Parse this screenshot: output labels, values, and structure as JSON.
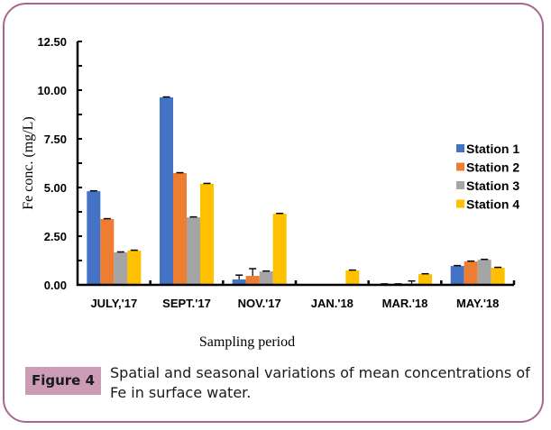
{
  "figure": {
    "label": "Figure 4",
    "caption": "Spatial and seasonal variations of mean concentrations of Fe in surface water."
  },
  "chart_data": {
    "type": "bar",
    "title": "",
    "xlabel": "Sampling period",
    "ylabel": "Fe conc. (mg/L)",
    "ylim": [
      0,
      12.5
    ],
    "yticks": [
      "0.00",
      "2.50",
      "5.00",
      "7.50",
      "10.00",
      "12.50"
    ],
    "grid": false,
    "legend_position": "right",
    "categories": [
      "JULY,'17",
      "SEPT.'17",
      "NOV.'17",
      "JAN.'18",
      "MAR.'18",
      "MAY.'18"
    ],
    "series": [
      {
        "name": "Station 1",
        "color": "#4472c4",
        "values": [
          4.81,
          9.63,
          0.28,
          0.0,
          0.05,
          0.97
        ],
        "errors": [
          0.02,
          0.02,
          0.22,
          0.0,
          0.0,
          0.02
        ]
      },
      {
        "name": "Station 2",
        "color": "#ed7d31",
        "values": [
          3.38,
          5.74,
          0.46,
          0.0,
          0.03,
          1.2
        ],
        "errors": [
          0.02,
          0.02,
          0.37,
          0.0,
          0.02,
          0.02
        ]
      },
      {
        "name": "Station 3",
        "color": "#a5a5a5",
        "values": [
          1.67,
          3.47,
          0.69,
          0.0,
          0.07,
          1.29
        ],
        "errors": [
          0.02,
          0.02,
          0.02,
          0.0,
          0.13,
          0.02
        ]
      },
      {
        "name": "Station 4",
        "color": "#ffc000",
        "values": [
          1.76,
          5.19,
          3.65,
          0.74,
          0.55,
          0.88
        ],
        "errors": [
          0.02,
          0.02,
          0.02,
          0.02,
          0.02,
          0.02
        ]
      }
    ]
  }
}
